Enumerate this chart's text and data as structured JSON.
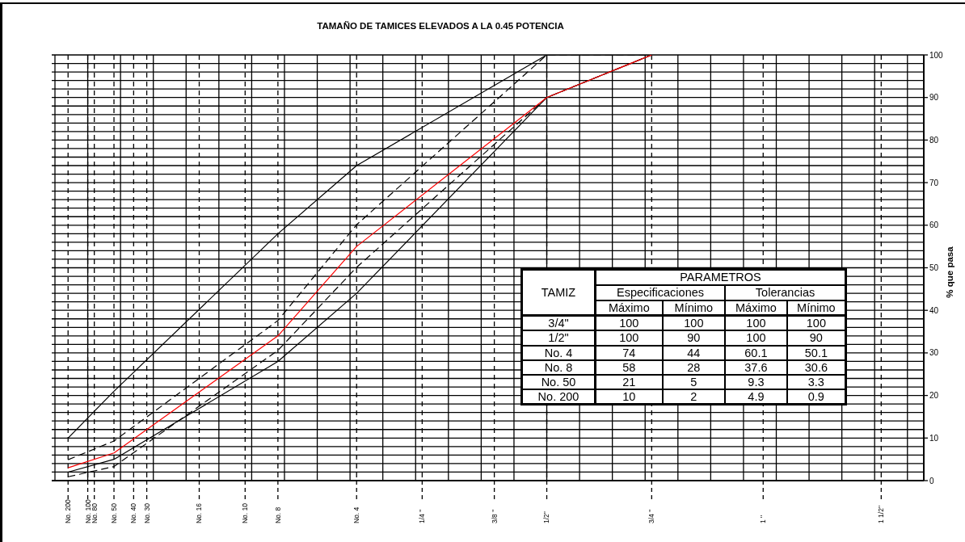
{
  "chart_data": [
    {
      "type": "line",
      "title": "TAMAÑO DE TAMICES ELEVADOS A LA 0.45 POTENCIA",
      "ylabel": "% que pasa",
      "categories": [
        null,
        null,
        "No. 200",
        null,
        null,
        "No. 100",
        "No. 80",
        null,
        null,
        "No. 50",
        null,
        null,
        "No. 40",
        null,
        "No. 30",
        null,
        null,
        null,
        null,
        null,
        null,
        null,
        "No. 16",
        null,
        null,
        null,
        null,
        null,
        null,
        "No. 10",
        null,
        null,
        null,
        null,
        "No. 8",
        null,
        null,
        null,
        null,
        null,
        null,
        null,
        null,
        null,
        null,
        null,
        "No. 4",
        null,
        null,
        null,
        null,
        null,
        null,
        null,
        null,
        null,
        "1/4 \"",
        null,
        null,
        null,
        null,
        null,
        null,
        null,
        null,
        null,
        null,
        "3/8 \"",
        null,
        null,
        null,
        null,
        null,
        null,
        null,
        "1/2\"",
        null,
        null,
        null,
        null,
        null,
        null,
        null,
        null,
        null,
        null,
        null,
        null,
        null,
        null,
        null,
        "3/4 \"",
        null,
        null,
        null,
        null,
        null,
        null,
        null,
        null,
        null,
        null,
        null,
        null,
        null,
        null,
        null,
        null,
        "1 \"",
        null,
        null,
        null,
        null,
        null,
        null,
        null,
        null,
        null,
        null,
        null,
        null,
        null,
        null,
        null,
        null,
        null,
        "1 1/2\"",
        null,
        null,
        null,
        null,
        null,
        null
      ],
      "series": [
        {
          "color": "#000000",
          "line_style": "solid",
          "x": [
            "3/4 \"",
            "1/2\"",
            "No. 4",
            "No. 8",
            "No. 50",
            "No. 200"
          ],
          "values": [
            100,
            100,
            74,
            58,
            21,
            10
          ]
        },
        {
          "color": "#000000",
          "line_style": "solid",
          "x": [
            "3/4 \"",
            "1/2\"",
            "No. 4",
            "No. 8",
            "No. 50",
            "No. 200"
          ],
          "values": [
            100,
            90,
            44,
            28,
            5,
            2
          ]
        },
        {
          "color": "#000000",
          "line_style": "dashed",
          "x": [
            "3/4 \"",
            "1/2\"",
            "No. 4",
            "No. 8",
            "No. 50",
            "No. 200"
          ],
          "values": [
            100,
            100,
            60.1,
            37.6,
            9.3,
            4.9
          ]
        },
        {
          "color": "#000000",
          "line_style": "dashed",
          "x": [
            "3/4 \"",
            "1/2\"",
            "No. 4",
            "No. 8",
            "No. 50",
            "No. 200"
          ],
          "values": [
            100,
            90,
            50.1,
            30.6,
            3.3,
            0.9
          ]
        },
        {
          "color": "#ff0000",
          "line_style": "solid",
          "x": [
            "3/4 \"",
            "1/2\"",
            "No. 4",
            "No. 8",
            "No. 50",
            "No. 200"
          ],
          "values": [
            100,
            90,
            55,
            34,
            6.5,
            3
          ]
        }
      ],
      "ylim": [
        0,
        100
      ],
      "yticks": [
        0,
        {
          "value": 2,
          "label": null
        },
        {
          "value": 4,
          "label": null
        },
        {
          "value": 6,
          "label": null
        },
        {
          "value": 8,
          "label": null
        },
        10,
        {
          "value": 12,
          "label": null
        },
        {
          "value": 14,
          "label": null
        },
        {
          "value": 16,
          "label": null
        },
        {
          "value": 18,
          "label": null
        },
        20,
        {
          "value": 22,
          "label": null
        },
        {
          "value": 24,
          "label": null
        },
        {
          "value": 26,
          "label": null
        },
        {
          "value": 28,
          "label": null
        },
        30,
        {
          "value": 32,
          "label": null
        },
        {
          "value": 34,
          "label": null
        },
        {
          "value": 36,
          "label": null
        },
        {
          "value": 38,
          "label": null
        },
        40,
        {
          "value": 42,
          "label": null
        },
        {
          "value": 44,
          "label": null
        },
        {
          "value": 46,
          "label": null
        },
        {
          "value": 48,
          "label": null
        },
        50,
        {
          "value": 52,
          "label": null
        },
        {
          "value": 54,
          "label": null
        },
        {
          "value": 56,
          "label": null
        },
        {
          "value": 58,
          "label": null
        },
        60,
        {
          "value": 62,
          "label": null
        },
        {
          "value": 64,
          "label": null
        },
        {
          "value": 66,
          "label": null
        },
        {
          "value": 68,
          "label": null
        },
        70,
        {
          "value": 72,
          "label": null
        },
        {
          "value": 74,
          "label": null
        },
        {
          "value": 76,
          "label": null
        },
        {
          "value": 78,
          "label": null
        },
        80,
        {
          "value": 82,
          "label": null
        },
        {
          "value": 84,
          "label": null
        },
        {
          "value": 86,
          "label": null
        },
        {
          "value": 88,
          "label": null
        },
        90,
        {
          "value": 92,
          "label": null
        },
        {
          "value": 94,
          "label": null
        },
        {
          "value": 96,
          "label": null
        },
        {
          "value": 98,
          "label": null
        },
        100
      ],
      "grid": true,
      "marker": "none"
    },
    {
      "type": "other",
      "annotations": [
        "TAMIZ",
        "PARAMETROS",
        "Especificaciones",
        "Tolerancias",
        "Máximo",
        "Mínimo",
        "Máximo",
        "Mínimo",
        "3/4\"",
        "100",
        "100",
        "100",
        "100",
        "1/2\"",
        "100",
        "90",
        "100",
        "90",
        "No. 4",
        "74",
        "44",
        "60.1",
        "50.1",
        "No. 8",
        "58",
        "28",
        "37.6",
        "30.6",
        "No. 50",
        "21",
        "5",
        "9.3",
        "3.3",
        "No. 200",
        "10",
        "2",
        "4.9",
        "0.9"
      ]
    }
  ]
}
